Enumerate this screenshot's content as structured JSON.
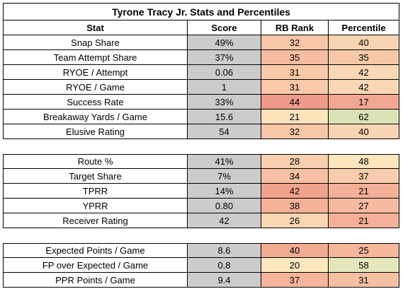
{
  "title": "Tyrone Tracy Jr. Stats and Percentiles",
  "headers": {
    "stat": "Stat",
    "score": "Score",
    "rank": "RB Rank",
    "percentile": "Percentile"
  },
  "sections": [
    {
      "rows": [
        {
          "stat": "Snap Share",
          "score": "49%",
          "rank": "32",
          "pct": "40",
          "rank_color": "#f9c6a8",
          "pct_color": "#f9d4b3"
        },
        {
          "stat": "Team Attempt Share",
          "score": "37%",
          "rank": "35",
          "pct": "35",
          "rank_color": "#f6bca2",
          "pct_color": "#f7c8a8"
        },
        {
          "stat": "RYOE / Attempt",
          "score": "0.06",
          "rank": "31",
          "pct": "42",
          "rank_color": "#f9c9aa",
          "pct_color": "#fad7b5"
        },
        {
          "stat": "RYOE / Game",
          "score": "1",
          "rank": "31",
          "pct": "42",
          "rank_color": "#f9c9aa",
          "pct_color": "#fad7b5"
        },
        {
          "stat": "Success Rate",
          "score": "33%",
          "rank": "44",
          "pct": "17",
          "rank_color": "#ee9a8a",
          "pct_color": "#f2a792"
        },
        {
          "stat": "Breakaway Yards / Game",
          "score": "15.6",
          "rank": "21",
          "pct": "62",
          "rank_color": "#fde4bd",
          "pct_color": "#dbe3b6"
        },
        {
          "stat": "Elusive Rating",
          "score": "54",
          "rank": "32",
          "pct": "40",
          "rank_color": "#f9c6a8",
          "pct_color": "#f9d4b3"
        }
      ]
    },
    {
      "rows": [
        {
          "stat": "Route %",
          "score": "41%",
          "rank": "28",
          "pct": "48",
          "rank_color": "#fad1b0",
          "pct_color": "#fde5bd"
        },
        {
          "stat": "Target Share",
          "score": "7%",
          "rank": "34",
          "pct": "37",
          "rank_color": "#f7c0a4",
          "pct_color": "#f8ccac"
        },
        {
          "stat": "TPRR",
          "score": "14%",
          "rank": "42",
          "pct": "21",
          "rank_color": "#f0a28d",
          "pct_color": "#f4b098"
        },
        {
          "stat": "YPRR",
          "score": "0.80",
          "rank": "38",
          "pct": "27",
          "rank_color": "#f4b198",
          "pct_color": "#f5ba9f"
        },
        {
          "stat": "Receiver Rating",
          "score": "42",
          "rank": "26",
          "pct": "21",
          "rank_color": "#fbd6b3",
          "pct_color": "#f4b098"
        }
      ]
    },
    {
      "rows": [
        {
          "stat": "Expected Points / Game",
          "score": "8.6",
          "rank": "40",
          "pct": "25",
          "rank_color": "#f2aa92",
          "pct_color": "#f5b69c"
        },
        {
          "stat": "FP over Expected / Game",
          "score": "0.8",
          "rank": "20",
          "pct": "58",
          "rank_color": "#fde7bf",
          "pct_color": "#e4e7bc"
        },
        {
          "stat": "PPR Points / Game",
          "score": "9.4",
          "rank": "37",
          "pct": "31",
          "rank_color": "#f5b59b",
          "pct_color": "#f6c0a3"
        }
      ]
    }
  ]
}
